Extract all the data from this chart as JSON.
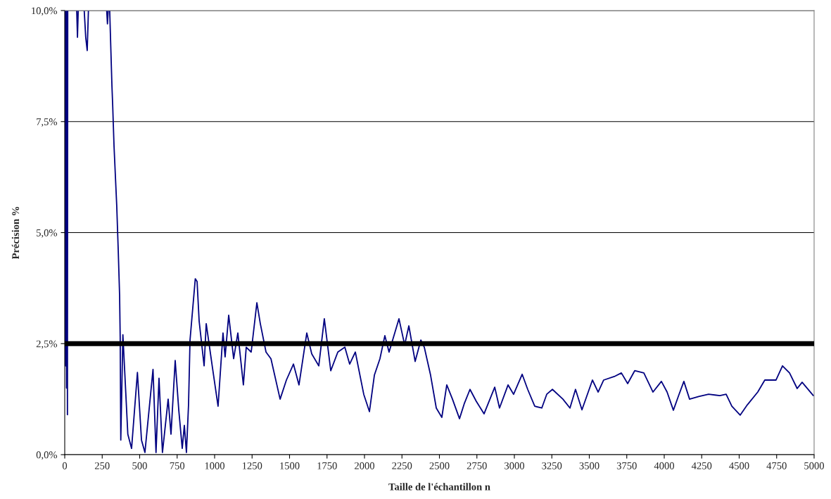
{
  "chart_data": {
    "type": "line",
    "xlabel": "Taille de l'échantillon n",
    "ylabel": "Précision %",
    "xlim": [
      0,
      5000
    ],
    "xticks": [
      0,
      250,
      500,
      750,
      1000,
      1250,
      1500,
      1750,
      2000,
      2250,
      2500,
      2750,
      3000,
      3250,
      3500,
      3750,
      4000,
      4250,
      4500,
      4750,
      5000
    ],
    "ylim": [
      0,
      10
    ],
    "yticks": [
      {
        "value": 0,
        "label": "0,0%"
      },
      {
        "value": 2.5,
        "label": "2,5%"
      },
      {
        "value": 5,
        "label": "5,0%"
      },
      {
        "value": 7.5,
        "label": "7,5%"
      },
      {
        "value": 10,
        "label": "10,0%"
      }
    ],
    "grid": "y",
    "legend": false,
    "marker": "none",
    "line_style": "solid",
    "ref_lines": [
      {
        "axis": "y",
        "value": 2.5,
        "label": null,
        "color": "#000000",
        "line_style": "solid"
      }
    ],
    "series": [
      {
        "color": "#000080",
        "x": [
          0,
          5,
          8,
          12,
          15,
          18,
          20,
          22,
          80,
          85,
          90,
          92,
          130,
          140,
          150,
          158,
          160,
          280,
          285,
          290,
          292,
          300,
          315,
          320,
          329,
          347,
          357,
          366,
          370,
          374,
          388,
          421,
          446,
          485,
          512,
          535,
          589,
          609,
          629,
          652,
          690,
          709,
          737,
          761,
          784,
          798,
          812,
          826,
          836,
          871,
          883,
          897,
          930,
          944,
          986,
          1023,
          1056,
          1070,
          1094,
          1127,
          1155,
          1192,
          1211,
          1244,
          1282,
          1305,
          1343,
          1376,
          1437,
          1479,
          1526,
          1563,
          1615,
          1648,
          1695,
          1732,
          1775,
          1822,
          1869,
          1901,
          1939,
          1995,
          2033,
          2066,
          2103,
          2136,
          2164,
          2230,
          2268,
          2296,
          2338,
          2376,
          2399,
          2441,
          2479,
          2516,
          2549,
          2587,
          2634,
          2667,
          2704,
          2746,
          2798,
          2869,
          2901,
          2958,
          2995,
          3052,
          3089,
          3136,
          3183,
          3216,
          3254,
          3324,
          3371,
          3408,
          3451,
          3521,
          3559,
          3596,
          3667,
          3714,
          3756,
          3803,
          3864,
          3925,
          3981,
          4019,
          4061,
          4099,
          4131,
          4169,
          4230,
          4296,
          4371,
          4413,
          4451,
          4507,
          4554,
          4624,
          4671,
          4746,
          4789,
          4836,
          4887,
          4920,
          4995
        ],
        "values": [
          10,
          2.0,
          10,
          1.5,
          10,
          0.9,
          10,
          null,
          10,
          9.4,
          10,
          null,
          10,
          9.4,
          9.1,
          10,
          null,
          10,
          9.7,
          10,
          null,
          10,
          8.3,
          7.86,
          6.94,
          5.6,
          4.6,
          3.6,
          2.65,
          0.33,
          2.7,
          0.46,
          0.14,
          1.85,
          0.33,
          0.05,
          1.92,
          0.05,
          1.72,
          0.05,
          1.25,
          0.46,
          2.12,
          1.0,
          0.14,
          0.66,
          0.05,
          1.12,
          2.58,
          3.96,
          3.9,
          3.0,
          2.0,
          2.95,
          1.95,
          1.09,
          2.74,
          2.2,
          3.14,
          2.16,
          2.74,
          1.57,
          2.42,
          2.31,
          3.42,
          2.95,
          2.31,
          2.16,
          1.25,
          1.68,
          2.04,
          1.57,
          2.74,
          2.27,
          2.0,
          3.06,
          1.89,
          2.31,
          2.42,
          2.04,
          2.31,
          1.36,
          0.97,
          1.79,
          2.16,
          2.68,
          2.31,
          3.06,
          2.47,
          2.9,
          2.1,
          2.58,
          2.42,
          1.79,
          1.05,
          0.84,
          1.57,
          1.25,
          0.81,
          1.16,
          1.47,
          1.2,
          0.92,
          1.52,
          1.05,
          1.57,
          1.36,
          1.81,
          1.47,
          1.09,
          1.05,
          1.36,
          1.47,
          1.25,
          1.05,
          1.47,
          1.01,
          1.68,
          1.41,
          1.68,
          1.76,
          1.84,
          1.6,
          1.89,
          1.84,
          1.41,
          1.65,
          1.41,
          1.0,
          1.36,
          1.65,
          1.25,
          1.31,
          1.36,
          1.33,
          1.36,
          1.09,
          0.89,
          1.12,
          1.41,
          1.68,
          1.68,
          2.0,
          1.84,
          1.49,
          1.63,
          1.33
        ]
      }
    ]
  }
}
